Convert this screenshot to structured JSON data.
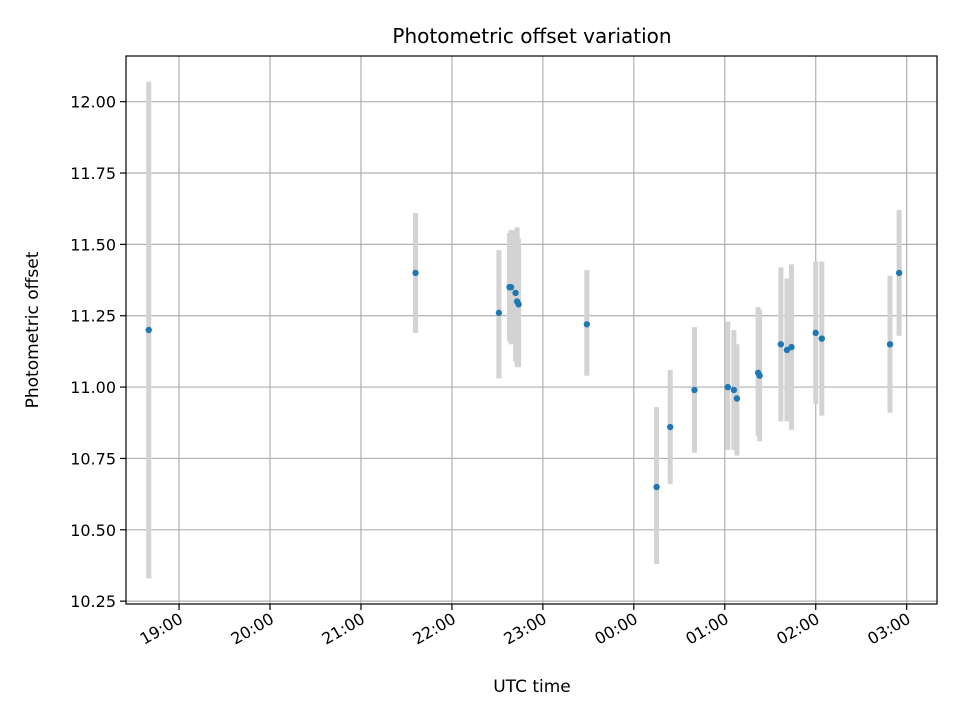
{
  "chart_data": {
    "type": "scatter",
    "title": "Photometric offset variation",
    "xlabel": "UTC time",
    "ylabel": "Photometric offset",
    "grid": true,
    "legend": "none",
    "x_axis": {
      "type": "time",
      "range": [
        "18:25",
        "03:20"
      ]
    },
    "ylim": [
      10.24,
      12.16
    ],
    "yticks": [
      "10.25",
      "10.50",
      "10.75",
      "11.00",
      "11.25",
      "11.50",
      "11.75",
      "12.00"
    ],
    "xticks": [
      "19:00",
      "20:00",
      "21:00",
      "22:00",
      "23:00",
      "00:00",
      "01:00",
      "02:00",
      "03:00"
    ],
    "colors": {
      "point": "#1f77b4",
      "errorbar": "#d3d3d3",
      "grid": "#b0b0b0"
    },
    "series": [
      {
        "x": [
          "18:40",
          "21:36",
          "22:31",
          "22:38",
          "22:39",
          "22:42",
          "22:43",
          "22:44",
          "23:29",
          "00:15",
          "00:24",
          "00:40",
          "01:02",
          "01:06",
          "01:08",
          "01:22",
          "01:23",
          "01:37",
          "01:41",
          "01:44",
          "02:00",
          "02:04",
          "02:49",
          "02:55"
        ],
        "y": [
          11.2,
          11.4,
          11.26,
          11.35,
          11.35,
          11.33,
          11.3,
          11.29,
          11.22,
          10.65,
          10.86,
          10.99,
          11.0,
          10.99,
          10.96,
          11.05,
          11.04,
          11.15,
          11.13,
          11.14,
          11.19,
          11.17,
          11.15,
          11.4
        ],
        "err_low": [
          10.33,
          11.19,
          11.03,
          11.16,
          11.15,
          11.09,
          11.07,
          11.07,
          11.04,
          10.38,
          10.66,
          10.77,
          10.78,
          10.78,
          10.76,
          10.83,
          10.81,
          10.88,
          10.88,
          10.85,
          10.94,
          10.9,
          10.91,
          11.18
        ],
        "err_high": [
          12.07,
          11.61,
          11.48,
          11.54,
          11.55,
          11.55,
          11.56,
          11.52,
          11.41,
          10.93,
          11.06,
          11.21,
          11.23,
          11.2,
          11.15,
          11.28,
          11.27,
          11.42,
          11.38,
          11.43,
          11.44,
          11.44,
          11.39,
          11.62
        ]
      }
    ]
  }
}
